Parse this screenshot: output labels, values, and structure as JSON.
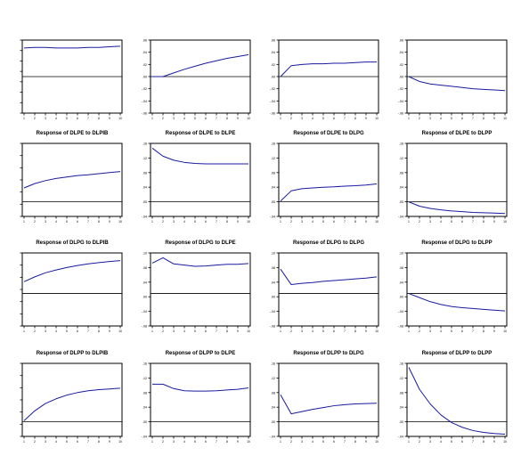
{
  "colors": {
    "line": "#1a1aa0",
    "axis": "#000000",
    "zero": "#000000",
    "title": "#000000"
  },
  "chart_data": [
    {
      "type": "line",
      "title": "",
      "x": [
        1,
        2,
        3,
        4,
        5,
        6,
        7,
        8,
        9,
        10
      ],
      "ylim": [
        -0.06,
        0.06
      ],
      "yticks": [
        "",
        "",
        "",
        "",
        "",
        "",
        "",
        ""
      ],
      "series": [
        {
          "values": [
            0.047,
            0.048,
            0.048,
            0.047,
            0.047,
            0.047,
            0.048,
            0.048,
            0.049,
            0.05
          ]
        }
      ]
    },
    {
      "type": "line",
      "title": "",
      "x": [
        1,
        2,
        3,
        4,
        5,
        6,
        7,
        8,
        9,
        10
      ],
      "ylim": [
        -0.06,
        0.06
      ],
      "yticks": [
        ".06",
        ".04",
        ".02",
        ".00",
        "-.02",
        "-.04",
        "-.06"
      ],
      "series": [
        {
          "values": [
            0.0,
            0.0,
            0.006,
            0.012,
            0.017,
            0.022,
            0.026,
            0.03,
            0.033,
            0.036
          ]
        }
      ]
    },
    {
      "type": "line",
      "title": "",
      "x": [
        1,
        2,
        3,
        4,
        5,
        6,
        7,
        8,
        9,
        10
      ],
      "ylim": [
        -0.06,
        0.06
      ],
      "yticks": [
        ".06",
        ".04",
        ".02",
        ".00",
        "-.02",
        "-.04",
        "-.06"
      ],
      "series": [
        {
          "values": [
            0.0,
            0.018,
            0.02,
            0.021,
            0.021,
            0.022,
            0.022,
            0.023,
            0.024,
            0.024
          ]
        }
      ]
    },
    {
      "type": "line",
      "title": "",
      "x": [
        1,
        2,
        3,
        4,
        5,
        6,
        7,
        8,
        9,
        10
      ],
      "ylim": [
        -0.06,
        0.06
      ],
      "yticks": [
        ".06",
        ".04",
        ".02",
        ".00",
        "-.02",
        "-.04",
        "-.06"
      ],
      "series": [
        {
          "values": [
            0.0,
            -0.008,
            -0.012,
            -0.014,
            -0.016,
            -0.018,
            -0.02,
            -0.021,
            -0.022,
            -0.023
          ]
        }
      ]
    },
    {
      "type": "line",
      "title": "Response of DLPE to DLPIB",
      "x": [
        1,
        2,
        3,
        4,
        5,
        6,
        7,
        8,
        9,
        10
      ],
      "ylim": [
        -0.04,
        0.16
      ],
      "yticks": [
        "",
        "",
        "",
        "",
        "",
        "",
        ""
      ],
      "series": [
        {
          "values": [
            0.038,
            0.05,
            0.058,
            0.064,
            0.068,
            0.072,
            0.074,
            0.077,
            0.08,
            0.083
          ]
        }
      ]
    },
    {
      "type": "line",
      "title": "Response of DLPE to DLPE",
      "x": [
        1,
        2,
        3,
        4,
        5,
        6,
        7,
        8,
        9,
        10
      ],
      "ylim": [
        -0.04,
        0.16
      ],
      "yticks": [
        ".16",
        ".12",
        ".08",
        ".04",
        ".00",
        "-.04"
      ],
      "series": [
        {
          "values": [
            0.147,
            0.125,
            0.114,
            0.108,
            0.105,
            0.104,
            0.104,
            0.104,
            0.104,
            0.104
          ]
        }
      ]
    },
    {
      "type": "line",
      "title": "Response of DLPE to DLPG",
      "x": [
        1,
        2,
        3,
        4,
        5,
        6,
        7,
        8,
        9,
        10
      ],
      "ylim": [
        -0.04,
        0.16
      ],
      "yticks": [
        ".16",
        ".12",
        ".08",
        ".04",
        ".00",
        "-.04"
      ],
      "series": [
        {
          "values": [
            0.002,
            0.03,
            0.036,
            0.038,
            0.04,
            0.041,
            0.043,
            0.044,
            0.046,
            0.049
          ]
        }
      ]
    },
    {
      "type": "line",
      "title": "Response of DLPE to DLPP",
      "x": [
        1,
        2,
        3,
        4,
        5,
        6,
        7,
        8,
        9,
        10
      ],
      "ylim": [
        -0.04,
        0.16
      ],
      "yticks": [
        ".16",
        ".12",
        ".08",
        ".04",
        ".00",
        "-.04"
      ],
      "series": [
        {
          "values": [
            0.0,
            -0.012,
            -0.018,
            -0.022,
            -0.025,
            -0.027,
            -0.029,
            -0.03,
            -0.031,
            -0.032
          ]
        }
      ]
    },
    {
      "type": "line",
      "title": "Response of DLPG to DLPIB",
      "x": [
        1,
        2,
        3,
        4,
        5,
        6,
        7,
        8,
        9,
        10
      ],
      "ylim": [
        -0.08,
        0.1
      ],
      "yticks": [
        "",
        "",
        "",
        "",
        "",
        "",
        ""
      ],
      "series": [
        {
          "values": [
            0.029,
            0.041,
            0.051,
            0.058,
            0.064,
            0.069,
            0.073,
            0.076,
            0.079,
            0.081
          ]
        }
      ]
    },
    {
      "type": "line",
      "title": "Response of DLPG to DLPE",
      "x": [
        1,
        2,
        3,
        4,
        5,
        6,
        7,
        8,
        9,
        10
      ],
      "ylim": [
        -0.08,
        0.1
      ],
      "yticks": [
        ".10",
        ".08",
        ".04",
        ".00",
        "-.04",
        "-.08"
      ],
      "series": [
        {
          "values": [
            0.075,
            0.088,
            0.073,
            0.07,
            0.067,
            0.068,
            0.07,
            0.072,
            0.072,
            0.074
          ]
        }
      ]
    },
    {
      "type": "line",
      "title": "Response of DLPG to DLPG",
      "x": [
        1,
        2,
        3,
        4,
        5,
        6,
        7,
        8,
        9,
        10
      ],
      "ylim": [
        -0.08,
        0.1
      ],
      "yticks": [
        ".10",
        ".08",
        ".04",
        ".00",
        "-.04",
        "-.08"
      ],
      "series": [
        {
          "values": [
            0.06,
            0.022,
            0.025,
            0.027,
            0.03,
            0.032,
            0.034,
            0.036,
            0.038,
            0.041
          ]
        }
      ]
    },
    {
      "type": "line",
      "title": "Response of DLPG to DLPP",
      "x": [
        1,
        2,
        3,
        4,
        5,
        6,
        7,
        8,
        9,
        10
      ],
      "ylim": [
        -0.08,
        0.1
      ],
      "yticks": [
        ".10",
        ".08",
        ".04",
        ".00",
        "-.04",
        "-.08"
      ],
      "series": [
        {
          "values": [
            0.0,
            -0.01,
            -0.02,
            -0.027,
            -0.032,
            -0.035,
            -0.037,
            -0.039,
            -0.041,
            -0.043
          ]
        }
      ]
    },
    {
      "type": "line",
      "title": "Response of DLPP to DLPIB",
      "x": [
        1,
        2,
        3,
        4,
        5,
        6,
        7,
        8,
        9,
        10
      ],
      "ylim": [
        -0.04,
        0.16
      ],
      "yticks": [
        "",
        "",
        "",
        "",
        "",
        "",
        ""
      ],
      "series": [
        {
          "values": [
            0.003,
            0.03,
            0.05,
            0.063,
            0.073,
            0.08,
            0.085,
            0.088,
            0.09,
            0.092
          ]
        }
      ]
    },
    {
      "type": "line",
      "title": "Response of DLPP to DLPE",
      "x": [
        1,
        2,
        3,
        4,
        5,
        6,
        7,
        8,
        9,
        10
      ],
      "ylim": [
        -0.04,
        0.16
      ],
      "yticks": [
        ".16",
        ".12",
        ".08",
        ".04",
        ".00",
        "-.04"
      ],
      "series": [
        {
          "values": [
            0.103,
            0.103,
            0.091,
            0.085,
            0.084,
            0.084,
            0.085,
            0.087,
            0.089,
            0.093
          ]
        }
      ]
    },
    {
      "type": "line",
      "title": "Response of DLPP to DLPG",
      "x": [
        1,
        2,
        3,
        4,
        5,
        6,
        7,
        8,
        9,
        10
      ],
      "ylim": [
        -0.04,
        0.16
      ],
      "yticks": [
        ".16",
        ".12",
        ".08",
        ".04",
        ".00",
        "-.04"
      ],
      "series": [
        {
          "values": [
            0.074,
            0.022,
            0.028,
            0.034,
            0.039,
            0.044,
            0.047,
            0.049,
            0.05,
            0.051
          ]
        }
      ]
    },
    {
      "type": "line",
      "title": "Response of DLPP to DLPP",
      "x": [
        1,
        2,
        3,
        4,
        5,
        6,
        7,
        8,
        9,
        10
      ],
      "ylim": [
        -0.04,
        0.16
      ],
      "yticks": [
        ".16",
        ".12",
        ".08",
        ".04",
        ".00",
        "-.04"
      ],
      "series": [
        {
          "values": [
            0.149,
            0.089,
            0.049,
            0.019,
            -0.002,
            -0.015,
            -0.024,
            -0.029,
            -0.032,
            -0.034
          ]
        }
      ]
    }
  ]
}
